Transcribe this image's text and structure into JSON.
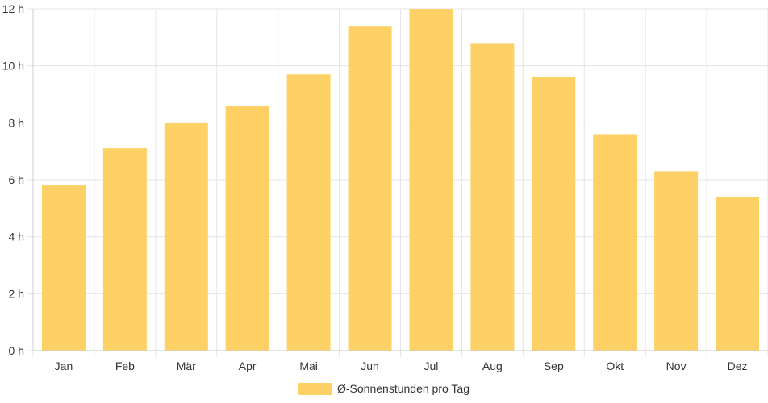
{
  "chart_data": {
    "type": "bar",
    "categories": [
      "Jan",
      "Feb",
      "Mär",
      "Apr",
      "Mai",
      "Jun",
      "Jul",
      "Aug",
      "Sep",
      "Okt",
      "Nov",
      "Dez"
    ],
    "series": [
      {
        "name": "Ø-Sonnenstunden pro Tag",
        "values": [
          5.8,
          7.1,
          8.0,
          8.6,
          9.7,
          11.4,
          12.0,
          10.8,
          9.6,
          7.6,
          6.3,
          5.4
        ]
      }
    ],
    "y_ticks": [
      "0 h",
      "2 h",
      "4 h",
      "6 h",
      "8 h",
      "10 h",
      "12 h"
    ],
    "ylim": [
      0,
      12
    ],
    "grid": true,
    "legend_position": "bottom",
    "colors": {
      "bar": "#fdd166",
      "grid": "#e5e5e5",
      "axis": "#cccccc",
      "text": "#333333"
    }
  }
}
